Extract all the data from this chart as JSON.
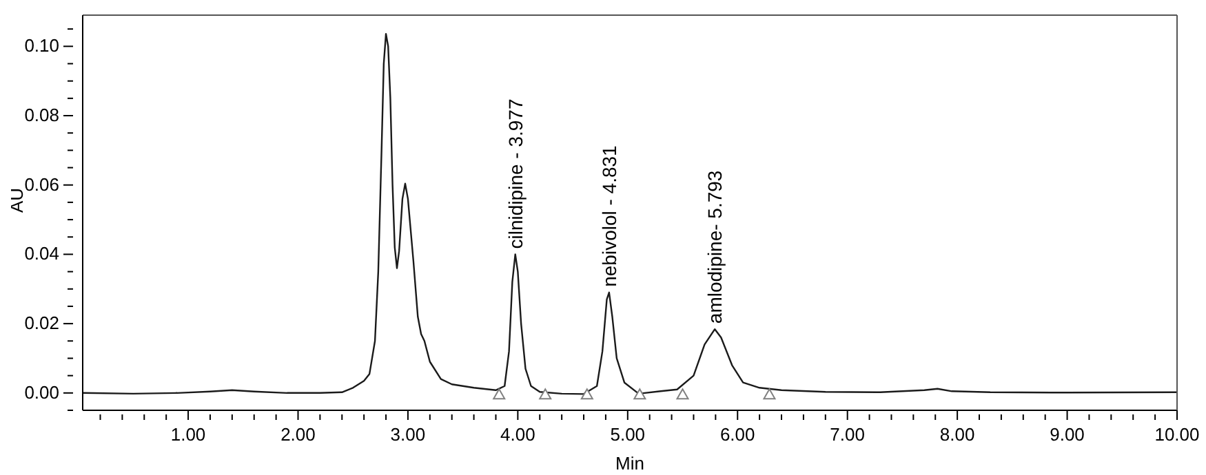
{
  "chart_data": {
    "type": "line",
    "xlabel": "Min",
    "ylabel": "AU",
    "xlim": [
      0.04,
      10
    ],
    "ylim": [
      -0.005,
      0.109
    ],
    "xticks": [
      {
        "value": 0.2,
        "label": null
      },
      {
        "value": 0.4,
        "label": null
      },
      {
        "value": 0.6,
        "label": null
      },
      {
        "value": 0.8,
        "label": null
      },
      {
        "value": 1,
        "label": "1.00"
      },
      {
        "value": 1.2,
        "label": null
      },
      {
        "value": 1.4,
        "label": null
      },
      {
        "value": 1.6,
        "label": null
      },
      {
        "value": 1.8,
        "label": null
      },
      {
        "value": 2,
        "label": "2.00"
      },
      {
        "value": 2.2,
        "label": null
      },
      {
        "value": 2.4,
        "label": null
      },
      {
        "value": 2.6,
        "label": null
      },
      {
        "value": 2.8,
        "label": null
      },
      {
        "value": 3,
        "label": "3.00"
      },
      {
        "value": 3.2,
        "label": null
      },
      {
        "value": 3.4,
        "label": null
      },
      {
        "value": 3.6,
        "label": null
      },
      {
        "value": 3.8,
        "label": null
      },
      {
        "value": 4,
        "label": "4.00"
      },
      {
        "value": 4.2,
        "label": null
      },
      {
        "value": 4.4,
        "label": null
      },
      {
        "value": 4.6,
        "label": null
      },
      {
        "value": 4.8,
        "label": null
      },
      {
        "value": 5,
        "label": "5.00"
      },
      {
        "value": 5.2,
        "label": null
      },
      {
        "value": 5.4,
        "label": null
      },
      {
        "value": 5.6,
        "label": null
      },
      {
        "value": 5.8,
        "label": null
      },
      {
        "value": 6,
        "label": "6.00"
      },
      {
        "value": 6.2,
        "label": null
      },
      {
        "value": 6.4,
        "label": null
      },
      {
        "value": 6.6,
        "label": null
      },
      {
        "value": 6.8,
        "label": null
      },
      {
        "value": 7,
        "label": "7.00"
      },
      {
        "value": 7.2,
        "label": null
      },
      {
        "value": 7.4,
        "label": null
      },
      {
        "value": 7.6,
        "label": null
      },
      {
        "value": 7.8,
        "label": null
      },
      {
        "value": 8,
        "label": "8.00"
      },
      {
        "value": 8.2,
        "label": null
      },
      {
        "value": 8.4,
        "label": null
      },
      {
        "value": 8.6,
        "label": null
      },
      {
        "value": 8.8,
        "label": null
      },
      {
        "value": 9,
        "label": "9.00"
      },
      {
        "value": 9.2,
        "label": null
      },
      {
        "value": 9.4,
        "label": null
      },
      {
        "value": 9.6,
        "label": null
      },
      {
        "value": 9.8,
        "label": null
      },
      {
        "value": 10,
        "label": "10.00"
      }
    ],
    "yticks": [
      {
        "value": -0.005,
        "label": null
      },
      {
        "value": 0,
        "label": "0.00"
      },
      {
        "value": 0.005,
        "label": null
      },
      {
        "value": 0.01,
        "label": null
      },
      {
        "value": 0.015,
        "label": null
      },
      {
        "value": 0.02,
        "label": "0.02"
      },
      {
        "value": 0.025,
        "label": null
      },
      {
        "value": 0.03,
        "label": null
      },
      {
        "value": 0.035,
        "label": null
      },
      {
        "value": 0.04,
        "label": "0.04"
      },
      {
        "value": 0.045,
        "label": null
      },
      {
        "value": 0.05,
        "label": null
      },
      {
        "value": 0.055,
        "label": null
      },
      {
        "value": 0.06,
        "label": "0.06"
      },
      {
        "value": 0.065,
        "label": null
      },
      {
        "value": 0.07,
        "label": null
      },
      {
        "value": 0.075,
        "label": null
      },
      {
        "value": 0.08,
        "label": "0.08"
      },
      {
        "value": 0.085,
        "label": null
      },
      {
        "value": 0.09,
        "label": null
      },
      {
        "value": 0.095,
        "label": null
      },
      {
        "value": 0.1,
        "label": "0.10"
      },
      {
        "value": 0.105,
        "label": null
      }
    ],
    "series": [
      {
        "color": "#1a1a1a",
        "marker": "none",
        "line_style": "solid",
        "x": [
          0.04,
          0.5,
          0.9,
          1.2,
          1.4,
          1.6,
          1.9,
          2.2,
          2.4,
          2.5,
          2.6,
          2.65,
          2.7,
          2.73,
          2.76,
          2.78,
          2.8,
          2.82,
          2.84,
          2.86,
          2.88,
          2.9,
          2.92,
          2.95,
          2.975,
          3.0,
          3.05,
          3.09,
          3.12,
          3.15,
          3.2,
          3.3,
          3.4,
          3.6,
          3.8,
          3.88,
          3.92,
          3.95,
          3.977,
          4.0,
          4.03,
          4.07,
          4.12,
          4.2,
          4.4,
          4.6,
          4.72,
          4.77,
          4.81,
          4.831,
          4.86,
          4.9,
          4.97,
          5.1,
          5.3,
          5.45,
          5.6,
          5.7,
          5.793,
          5.85,
          5.95,
          6.05,
          6.2,
          6.4,
          6.8,
          7.3,
          7.7,
          7.82,
          7.95,
          8.3,
          9.0,
          10
        ],
        "values": [
          0,
          -0.0002,
          0,
          0.0004,
          0.0008,
          0.0004,
          0,
          0,
          0.0002,
          0.0015,
          0.0035,
          0.0055,
          0.015,
          0.035,
          0.07,
          0.095,
          0.1036,
          0.1,
          0.085,
          0.06,
          0.042,
          0.036,
          0.041,
          0.056,
          0.0604,
          0.056,
          0.038,
          0.022,
          0.017,
          0.015,
          0.009,
          0.004,
          0.0025,
          0.0015,
          0.0008,
          0.002,
          0.012,
          0.032,
          0.04,
          0.035,
          0.02,
          0.007,
          0.002,
          0.0003,
          -0.0002,
          -0.0003,
          0.002,
          0.012,
          0.027,
          0.029,
          0.022,
          0.01,
          0.003,
          -0.0002,
          0.0005,
          0.001,
          0.005,
          0.014,
          0.0184,
          0.016,
          0.008,
          0.003,
          0.0015,
          0.0008,
          0.0003,
          0.0002,
          0.0008,
          0.0012,
          0.0005,
          0.0002,
          0.0001,
          0.0002
        ]
      },
      {
        "type": "scatter",
        "color": "#808080",
        "marker": "triangle",
        "x": [
          3.83,
          4.25,
          4.63,
          5.11,
          5.5,
          6.29
        ],
        "values": [
          -0.0005,
          -0.0005,
          -0.0005,
          -0.0005,
          -0.0005,
          -0.0005
        ]
      }
    ],
    "annotations": [
      {
        "text": "cilnidipine - 3.977",
        "x": 3.977,
        "y": 0.04
      },
      {
        "text": "nebivolol - 4.831",
        "x": 4.831,
        "y": 0.029
      },
      {
        "text": "amlodipine- 5.793",
        "x": 5.793,
        "y": 0.0184
      }
    ]
  }
}
